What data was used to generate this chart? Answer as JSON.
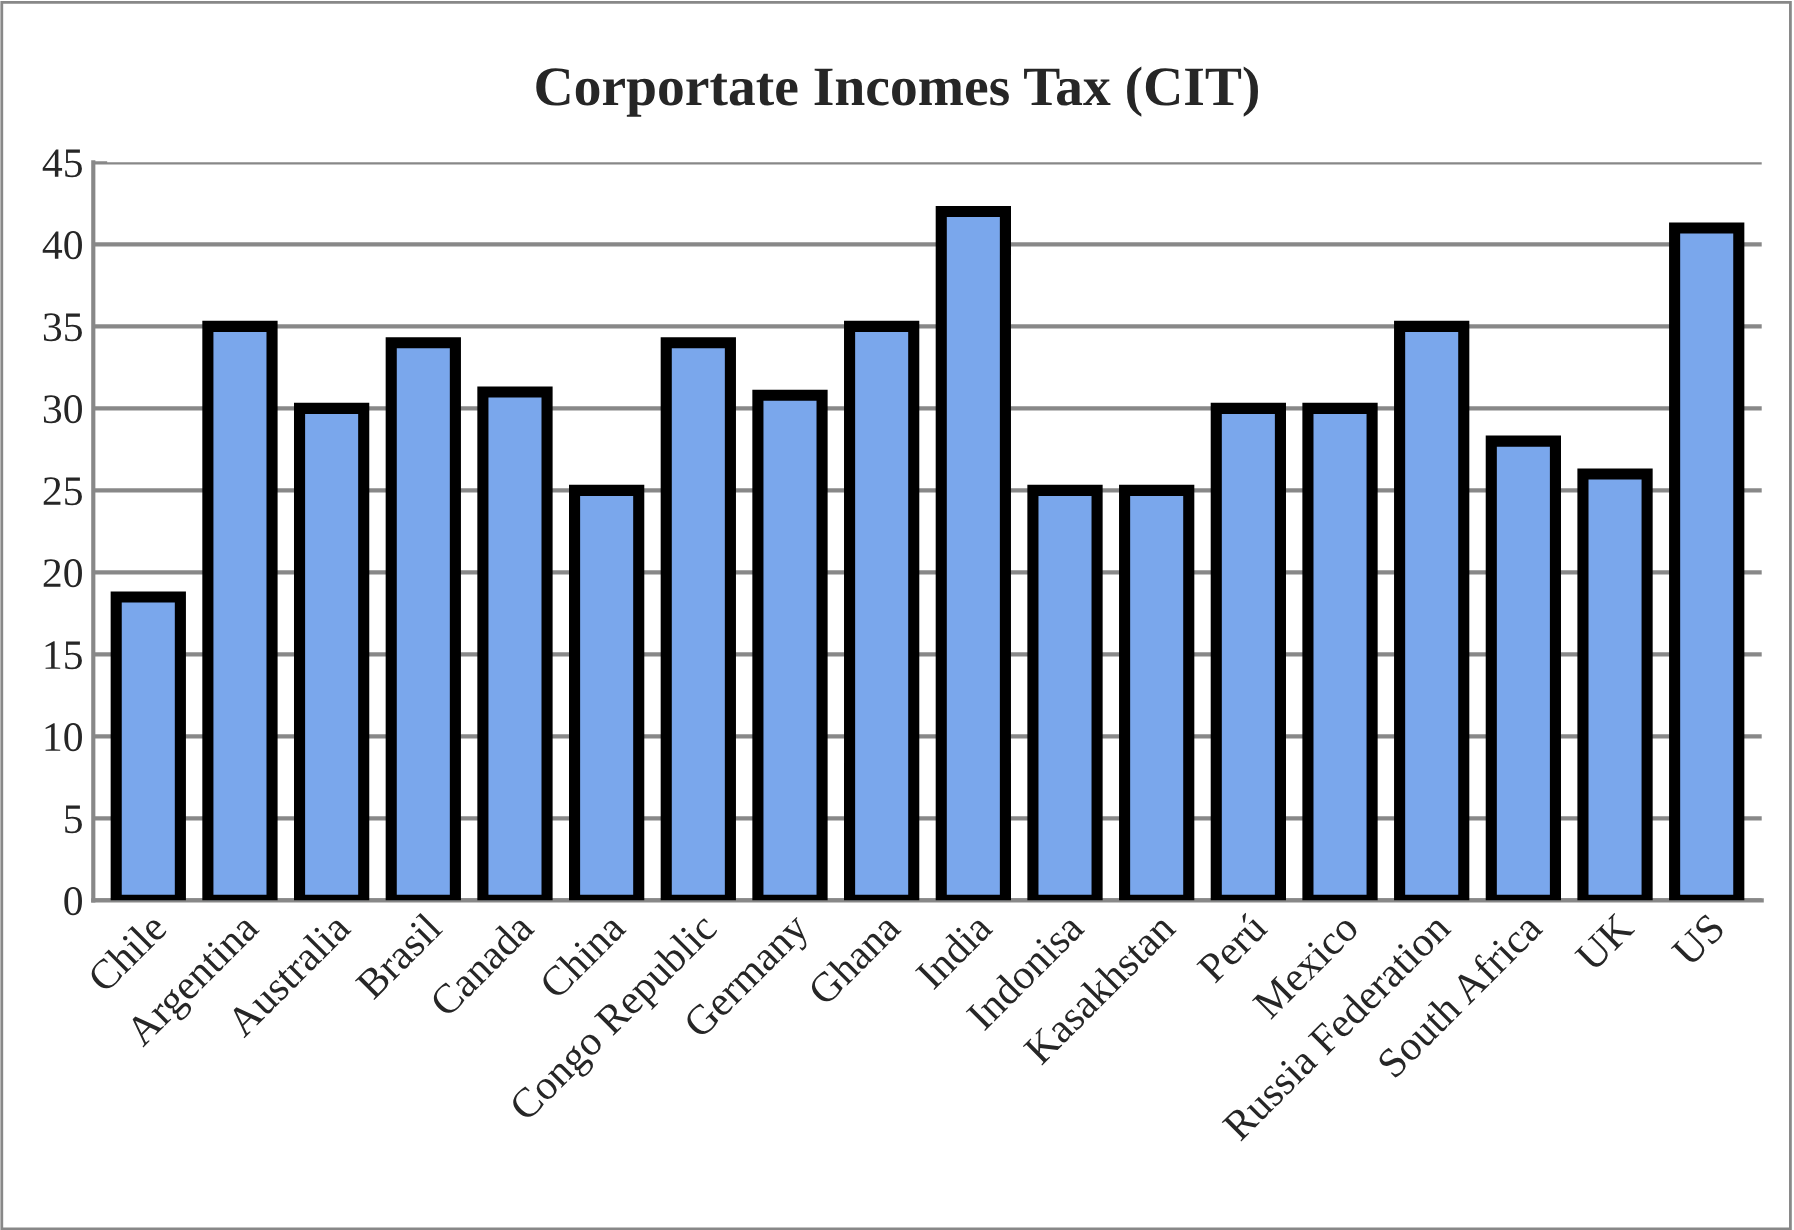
{
  "chart_data": {
    "type": "bar",
    "title": "Corportate Incomes Tax (CIT)",
    "categories": [
      "Chile",
      "Argentina",
      "Australia",
      "Brasil",
      "Canada",
      "China",
      "Congo Republic",
      "Germany",
      "Ghana",
      "India",
      "Indonisa",
      "Kasakhstan",
      "Perú",
      "Mexico",
      "Russia Federation",
      "South Africa",
      "UK",
      "US"
    ],
    "values": [
      18.5,
      35,
      30,
      34,
      31,
      25,
      34,
      30.8,
      35,
      42,
      25,
      25,
      30,
      30,
      35,
      28,
      26,
      41
    ],
    "color": "#7aa7ec",
    "ylim": [
      0,
      45
    ],
    "yticks": [
      0,
      5,
      10,
      15,
      20,
      25,
      30,
      35,
      40,
      45
    ],
    "grid": "y"
  }
}
